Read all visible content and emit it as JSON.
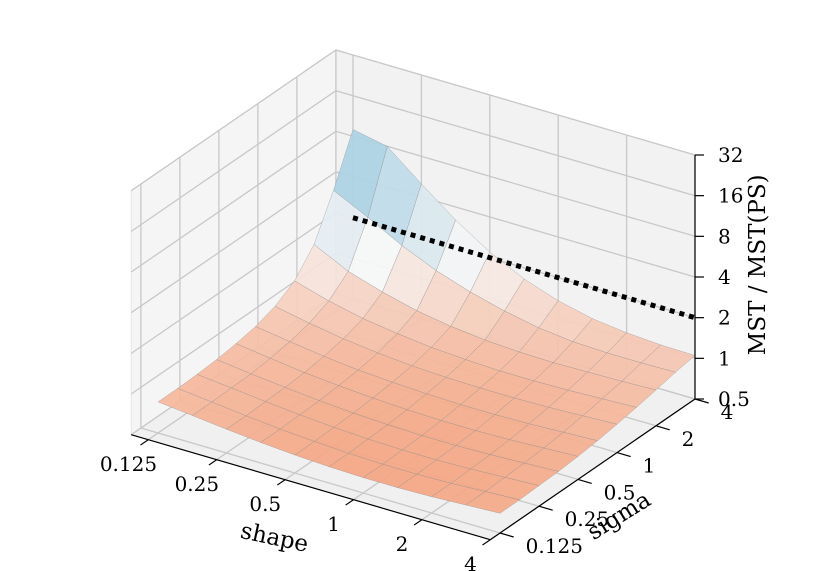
{
  "chart_data": {
    "type": "surface3d",
    "title": "",
    "xlabel": "shape",
    "ylabel": "sigma",
    "zlabel": "MST / MST(PS)",
    "x_ticks": [
      "0.125",
      "0.25",
      "0.5",
      "1",
      "2",
      "4"
    ],
    "y_ticks": [
      "0.125",
      "0.25",
      "0.5",
      "1",
      "2",
      "4"
    ],
    "z_ticks": [
      "0.5",
      "1",
      "2",
      "4",
      "8",
      "16",
      "32"
    ],
    "x_scale": "log2",
    "y_scale": "log2",
    "z_scale": "log2",
    "xlim": [
      0.125,
      4
    ],
    "ylim": [
      0.125,
      4
    ],
    "zlim": [
      0.5,
      32
    ],
    "shape_values": [
      0.125,
      0.177,
      0.25,
      0.354,
      0.5,
      0.707,
      1,
      1.414,
      2,
      2.828,
      4
    ],
    "sigma_values": [
      0.125,
      0.177,
      0.25,
      0.354,
      0.5,
      0.707,
      1,
      1.414,
      2,
      2.828,
      4
    ],
    "surface_z_note": "rows indexed by sigma (0.125 → 4), columns by shape (0.125 → 4)",
    "surface_z": [
      [
        0.85,
        0.8,
        0.75,
        0.71,
        0.68,
        0.66,
        0.65,
        0.65,
        0.66,
        0.68,
        0.7
      ],
      [
        0.85,
        0.8,
        0.75,
        0.71,
        0.68,
        0.66,
        0.65,
        0.65,
        0.66,
        0.68,
        0.7
      ],
      [
        0.86,
        0.81,
        0.76,
        0.72,
        0.69,
        0.67,
        0.66,
        0.66,
        0.67,
        0.69,
        0.71
      ],
      [
        0.88,
        0.82,
        0.77,
        0.73,
        0.7,
        0.68,
        0.67,
        0.67,
        0.68,
        0.7,
        0.72
      ],
      [
        0.92,
        0.85,
        0.79,
        0.75,
        0.72,
        0.7,
        0.69,
        0.69,
        0.7,
        0.72,
        0.74
      ],
      [
        0.98,
        0.9,
        0.83,
        0.78,
        0.75,
        0.73,
        0.72,
        0.72,
        0.73,
        0.75,
        0.77
      ],
      [
        1.1,
        0.98,
        0.89,
        0.83,
        0.79,
        0.77,
        0.76,
        0.76,
        0.77,
        0.79,
        0.81
      ],
      [
        1.35,
        1.14,
        1.0,
        0.92,
        0.86,
        0.83,
        0.81,
        0.81,
        0.82,
        0.84,
        0.86
      ],
      [
        2.0,
        1.5,
        1.25,
        1.08,
        0.98,
        0.92,
        0.89,
        0.88,
        0.89,
        0.9,
        0.92
      ],
      [
        4.0,
        3.0,
        2.2,
        1.7,
        1.4,
        1.2,
        1.07,
        1.0,
        0.98,
        0.98,
        0.99
      ],
      [
        9.0,
        8.0,
        5.0,
        3.2,
        2.2,
        1.65,
        1.35,
        1.18,
        1.1,
        1.06,
        1.05
      ]
    ],
    "reference_line": {
      "style": "dotted",
      "color": "#000000",
      "z": 2,
      "sigma": 4,
      "shape_values": [
        0.125,
        0.177,
        0.25,
        0.354,
        0.5,
        0.707,
        1,
        1.414,
        2,
        2.828,
        4
      ]
    },
    "colormap": {
      "low": "#f4a582",
      "mid": "#f7f7f7",
      "high": "#92c5de"
    },
    "grid": true
  }
}
